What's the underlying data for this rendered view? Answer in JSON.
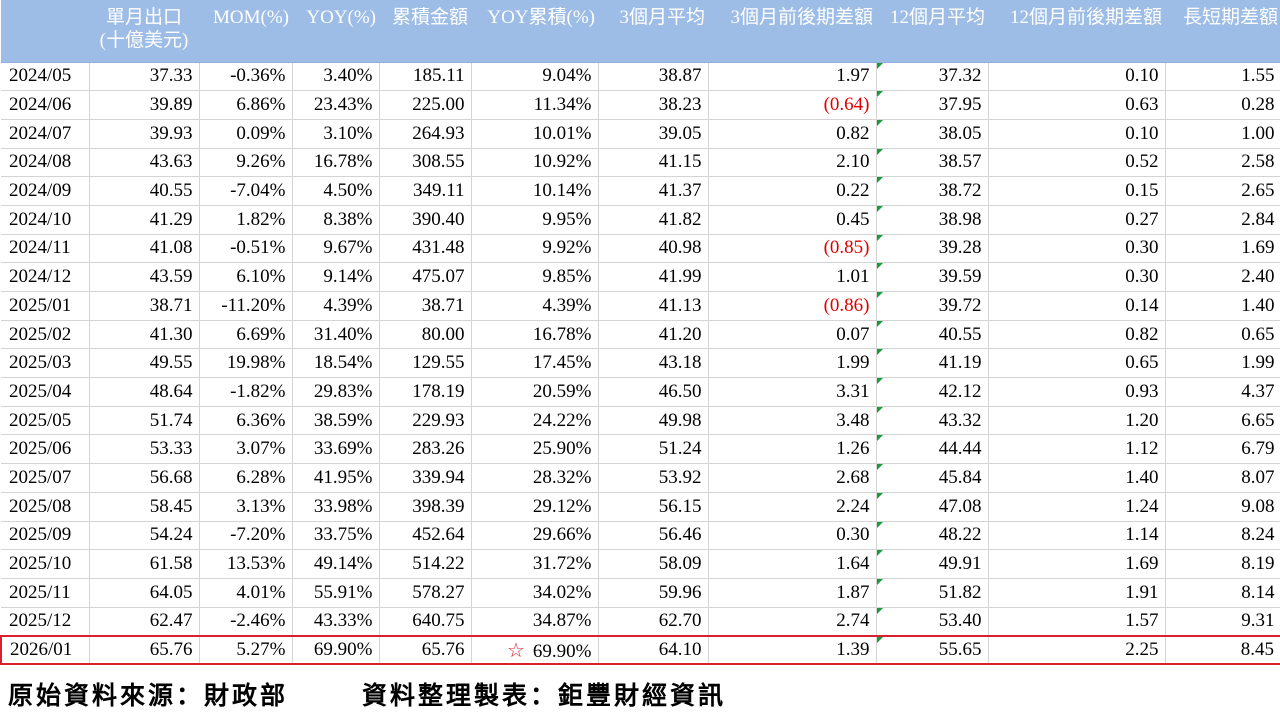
{
  "headers": [
    {
      "lines": [
        "單月出口",
        "(十億美元)"
      ]
    },
    {
      "lines": [
        "MOM(%)"
      ]
    },
    {
      "lines": [
        "YOY(%)"
      ]
    },
    {
      "lines": [
        "累積金額"
      ]
    },
    {
      "lines": [
        "YOY累積(%)"
      ]
    },
    {
      "lines": [
        "3個月平均"
      ]
    },
    {
      "lines": [
        "3個月前後期差額"
      ]
    },
    {
      "lines": [
        "12個月平均"
      ]
    },
    {
      "lines": [
        "12個月前後期差額"
      ]
    },
    {
      "lines": [
        "長短期差額"
      ]
    }
  ],
  "rows": [
    [
      "2024/05",
      "37.33",
      "-0.36%",
      "3.40%",
      "185.11",
      "9.04%",
      "38.87",
      "1.97",
      "37.32",
      "0.10",
      "1.55"
    ],
    [
      "2024/06",
      "39.89",
      "6.86%",
      "23.43%",
      "225.00",
      "11.34%",
      "38.23",
      "(0.64)",
      "37.95",
      "0.63",
      "0.28"
    ],
    [
      "2024/07",
      "39.93",
      "0.09%",
      "3.10%",
      "264.93",
      "10.01%",
      "39.05",
      "0.82",
      "38.05",
      "0.10",
      "1.00"
    ],
    [
      "2024/08",
      "43.63",
      "9.26%",
      "16.78%",
      "308.55",
      "10.92%",
      "41.15",
      "2.10",
      "38.57",
      "0.52",
      "2.58"
    ],
    [
      "2024/09",
      "40.55",
      "-7.04%",
      "4.50%",
      "349.11",
      "10.14%",
      "41.37",
      "0.22",
      "38.72",
      "0.15",
      "2.65"
    ],
    [
      "2024/10",
      "41.29",
      "1.82%",
      "8.38%",
      "390.40",
      "9.95%",
      "41.82",
      "0.45",
      "38.98",
      "0.27",
      "2.84"
    ],
    [
      "2024/11",
      "41.08",
      "-0.51%",
      "9.67%",
      "431.48",
      "9.92%",
      "40.98",
      "(0.85)",
      "39.28",
      "0.30",
      "1.69"
    ],
    [
      "2024/12",
      "43.59",
      "6.10%",
      "9.14%",
      "475.07",
      "9.85%",
      "41.99",
      "1.01",
      "39.59",
      "0.30",
      "2.40"
    ],
    [
      "2025/01",
      "38.71",
      "-11.20%",
      "4.39%",
      "38.71",
      "4.39%",
      "41.13",
      "(0.86)",
      "39.72",
      "0.14",
      "1.40"
    ],
    [
      "2025/02",
      "41.30",
      "6.69%",
      "31.40%",
      "80.00",
      "16.78%",
      "41.20",
      "0.07",
      "40.55",
      "0.82",
      "0.65"
    ],
    [
      "2025/03",
      "49.55",
      "19.98%",
      "18.54%",
      "129.55",
      "17.45%",
      "43.18",
      "1.99",
      "41.19",
      "0.65",
      "1.99"
    ],
    [
      "2025/04",
      "48.64",
      "-1.82%",
      "29.83%",
      "178.19",
      "20.59%",
      "46.50",
      "3.31",
      "42.12",
      "0.93",
      "4.37"
    ],
    [
      "2025/05",
      "51.74",
      "6.36%",
      "38.59%",
      "229.93",
      "24.22%",
      "49.98",
      "3.48",
      "43.32",
      "1.20",
      "6.65"
    ],
    [
      "2025/06",
      "53.33",
      "3.07%",
      "33.69%",
      "283.26",
      "25.90%",
      "51.24",
      "1.26",
      "44.44",
      "1.12",
      "6.79"
    ],
    [
      "2025/07",
      "56.68",
      "6.28%",
      "41.95%",
      "339.94",
      "28.32%",
      "53.92",
      "2.68",
      "45.84",
      "1.40",
      "8.07"
    ],
    [
      "2025/08",
      "58.45",
      "3.13%",
      "33.98%",
      "398.39",
      "29.12%",
      "56.15",
      "2.24",
      "47.08",
      "1.24",
      "9.08"
    ],
    [
      "2025/09",
      "54.24",
      "-7.20%",
      "33.75%",
      "452.64",
      "29.66%",
      "56.46",
      "0.30",
      "48.22",
      "1.14",
      "8.24"
    ],
    [
      "2025/10",
      "61.58",
      "13.53%",
      "49.14%",
      "514.22",
      "31.72%",
      "58.09",
      "1.64",
      "49.91",
      "1.69",
      "8.19"
    ],
    [
      "2025/11",
      "64.05",
      "4.01%",
      "55.91%",
      "578.27",
      "34.02%",
      "59.96",
      "1.87",
      "51.82",
      "1.91",
      "8.14"
    ],
    [
      "2025/12",
      "62.47",
      "-2.46%",
      "43.33%",
      "640.75",
      "34.87%",
      "62.70",
      "2.74",
      "53.40",
      "1.57",
      "9.31"
    ],
    [
      "2026/01",
      "65.76",
      "5.27%",
      "69.90%",
      "65.76",
      "69.90%",
      "64.10",
      "1.39",
      "55.65",
      "2.25",
      "8.45"
    ]
  ],
  "highlight_row": 20,
  "star_icon": "☆",
  "footer": {
    "source": "原始資料來源：財政部",
    "compiled": "資料整理製表：鉅豐財經資訊"
  },
  "colors": {
    "header_bg": "#9dbde6",
    "negative": "#e00000",
    "highlight_border": "#d82030",
    "comment_marker": "#1a9a3a"
  }
}
